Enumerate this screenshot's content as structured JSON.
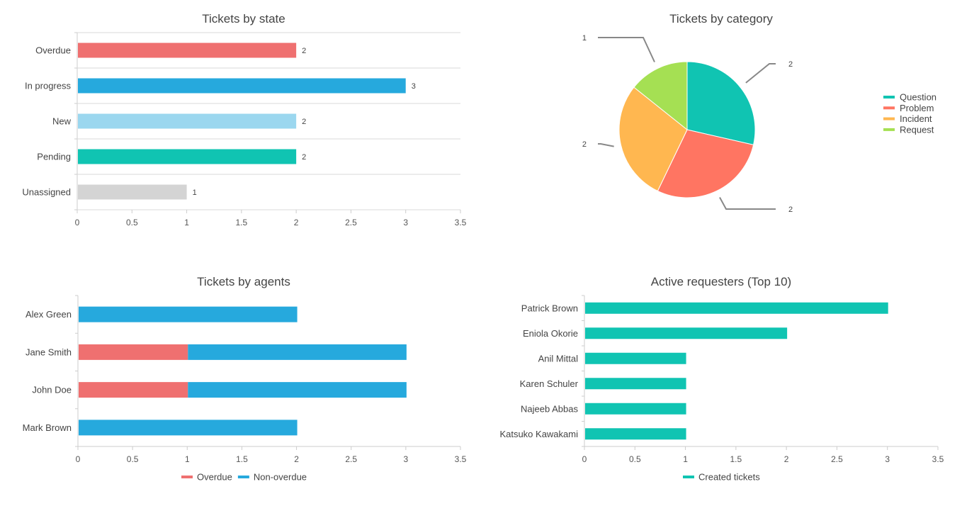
{
  "chart_data": [
    {
      "type": "bar",
      "orientation": "horizontal",
      "title": "Tickets by state",
      "categories": [
        "Overdue",
        "In progress",
        "New",
        "Pending",
        "Unassigned"
      ],
      "values": [
        2,
        3,
        2,
        2,
        1
      ],
      "colors": [
        "#ef7070",
        "#26a9dd",
        "#9bd7ef",
        "#10c4b2",
        "#d4d4d4"
      ],
      "data_labels": true,
      "xlim": [
        0,
        3.5
      ],
      "xticks": [
        "0",
        "0.5",
        "1",
        "1.5",
        "2",
        "2.5",
        "3",
        "3.5"
      ],
      "grid": true
    },
    {
      "type": "pie",
      "title": "Tickets by category",
      "categories": [
        "Question",
        "Problem",
        "Incident",
        "Request"
      ],
      "values": [
        2,
        2,
        2,
        1
      ],
      "colors": [
        "#10c4b2",
        "#ff7562",
        "#ffb750",
        "#a5e053"
      ],
      "legend": "right"
    },
    {
      "type": "bar",
      "orientation": "horizontal",
      "stacked": true,
      "title": "Tickets by agents",
      "categories": [
        "Alex Green",
        "Jane Smith",
        "John Doe",
        "Mark Brown"
      ],
      "series": [
        {
          "name": "Overdue",
          "values": [
            0,
            1,
            1,
            0
          ],
          "color": "#ef7070"
        },
        {
          "name": "Non-overdue",
          "values": [
            2,
            2,
            2,
            2
          ],
          "color": "#26a9dd"
        }
      ],
      "xlim": [
        0,
        3.5
      ],
      "xticks": [
        "0",
        "0.5",
        "1",
        "1.5",
        "2",
        "2.5",
        "3",
        "3.5"
      ],
      "legend": "bottom"
    },
    {
      "type": "bar",
      "orientation": "horizontal",
      "title": "Active requesters (Top 10)",
      "categories": [
        "Patrick Brown",
        "Eniola Okorie",
        "Anil Mittal",
        "Karen Schuler",
        "Najeeb Abbas",
        "Katsuko Kawakami"
      ],
      "series": [
        {
          "name": "Created tickets",
          "values": [
            3,
            2,
            1,
            1,
            1,
            1
          ],
          "color": "#10c4b2"
        }
      ],
      "xlim": [
        0,
        3.5
      ],
      "xticks": [
        "0",
        "0.5",
        "1",
        "1.5",
        "2",
        "2.5",
        "3",
        "3.5"
      ],
      "legend": "bottom"
    }
  ]
}
